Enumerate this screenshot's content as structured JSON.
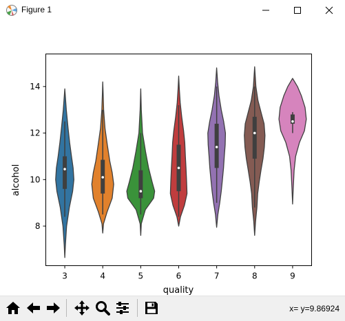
{
  "window": {
    "title": "Figure 1"
  },
  "toolbar": {
    "buttons": [
      {
        "name": "home-button",
        "icon": "home-icon"
      },
      {
        "name": "back-button",
        "icon": "arrow-left-icon"
      },
      {
        "name": "forward-button",
        "icon": "arrow-right-icon"
      },
      {
        "name": "pan-button",
        "icon": "move-icon"
      },
      {
        "name": "zoom-button",
        "icon": "magnifier-icon"
      },
      {
        "name": "subplots-button",
        "icon": "sliders-icon"
      },
      {
        "name": "save-button",
        "icon": "floppy-disk-icon"
      }
    ],
    "coords": "x= y=9.86924"
  },
  "chart_data": {
    "type": "violin",
    "xlabel": "quality",
    "ylabel": "alcohol",
    "categories": [
      "3",
      "4",
      "5",
      "6",
      "7",
      "8",
      "9"
    ],
    "ylim": [
      6.3,
      15.4
    ],
    "yticks": [
      8,
      10,
      12,
      14
    ],
    "grid": false,
    "series": [
      {
        "category": "3",
        "color": "#3274a1",
        "box": {
          "q1": 9.6,
          "median": 10.45,
          "q3": 11.0,
          "whisker_low": 8.4,
          "whisker_high": 12.5
        },
        "profile": [
          [
            6.65,
            0.0
          ],
          [
            7.2,
            0.04
          ],
          [
            8.0,
            0.12
          ],
          [
            8.8,
            0.3
          ],
          [
            9.5,
            0.52
          ],
          [
            10.0,
            0.6
          ],
          [
            10.5,
            0.55
          ],
          [
            11.0,
            0.44
          ],
          [
            11.6,
            0.32
          ],
          [
            12.2,
            0.22
          ],
          [
            13.0,
            0.1
          ],
          [
            13.9,
            0.0
          ]
        ]
      },
      {
        "category": "4",
        "color": "#e1812c",
        "box": {
          "q1": 9.4,
          "median": 10.1,
          "q3": 10.85,
          "whisker_low": 8.5,
          "whisker_high": 13.0
        },
        "profile": [
          [
            7.7,
            0.0
          ],
          [
            8.1,
            0.05
          ],
          [
            8.6,
            0.28
          ],
          [
            9.2,
            0.62
          ],
          [
            9.8,
            0.72
          ],
          [
            10.3,
            0.62
          ],
          [
            10.8,
            0.46
          ],
          [
            11.5,
            0.3
          ],
          [
            12.2,
            0.15
          ],
          [
            13.0,
            0.06
          ],
          [
            13.8,
            0.02
          ],
          [
            14.2,
            0.0
          ]
        ]
      },
      {
        "category": "5",
        "color": "#3a923a",
        "box": {
          "q1": 9.2,
          "median": 9.5,
          "q3": 10.4,
          "whisker_low": 8.5,
          "whisker_high": 12.0
        },
        "profile": [
          [
            7.6,
            0.0
          ],
          [
            8.1,
            0.04
          ],
          [
            8.7,
            0.3
          ],
          [
            9.2,
            0.85
          ],
          [
            9.5,
            0.92
          ],
          [
            9.9,
            0.75
          ],
          [
            10.5,
            0.52
          ],
          [
            11.2,
            0.32
          ],
          [
            12.0,
            0.12
          ],
          [
            13.0,
            0.04
          ],
          [
            13.9,
            0.0
          ]
        ]
      },
      {
        "category": "6",
        "color": "#c03d3e",
        "box": {
          "q1": 9.5,
          "median": 10.5,
          "q3": 11.5,
          "whisker_low": 8.4,
          "whisker_high": 13.2
        },
        "profile": [
          [
            8.0,
            0.0
          ],
          [
            8.4,
            0.12
          ],
          [
            8.9,
            0.38
          ],
          [
            9.4,
            0.55
          ],
          [
            9.9,
            0.52
          ],
          [
            10.5,
            0.48
          ],
          [
            11.0,
            0.44
          ],
          [
            11.6,
            0.4
          ],
          [
            12.1,
            0.32
          ],
          [
            12.7,
            0.2
          ],
          [
            13.3,
            0.1
          ],
          [
            13.9,
            0.04
          ],
          [
            14.45,
            0.0
          ]
        ]
      },
      {
        "category": "7",
        "color": "#9372b2",
        "box": {
          "q1": 10.5,
          "median": 11.4,
          "q3": 12.4,
          "whisker_low": 9.0,
          "whisker_high": 14.0
        },
        "profile": [
          [
            7.95,
            0.0
          ],
          [
            8.5,
            0.08
          ],
          [
            9.0,
            0.2
          ],
          [
            9.5,
            0.3
          ],
          [
            10.0,
            0.38
          ],
          [
            10.5,
            0.45
          ],
          [
            11.0,
            0.5
          ],
          [
            11.5,
            0.56
          ],
          [
            12.0,
            0.58
          ],
          [
            12.5,
            0.46
          ],
          [
            13.0,
            0.3
          ],
          [
            13.6,
            0.15
          ],
          [
            14.2,
            0.06
          ],
          [
            14.8,
            0.0
          ]
        ]
      },
      {
        "category": "8",
        "color": "#845b53",
        "box": {
          "q1": 10.9,
          "median": 12.0,
          "q3": 12.7,
          "whisker_low": 8.8,
          "whisker_high": 14.0
        },
        "profile": [
          [
            7.6,
            0.0
          ],
          [
            8.2,
            0.06
          ],
          [
            8.8,
            0.15
          ],
          [
            9.4,
            0.2
          ],
          [
            9.9,
            0.3
          ],
          [
            10.4,
            0.42
          ],
          [
            10.9,
            0.55
          ],
          [
            11.4,
            0.64
          ],
          [
            11.9,
            0.68
          ],
          [
            12.4,
            0.62
          ],
          [
            12.9,
            0.42
          ],
          [
            13.4,
            0.22
          ],
          [
            14.0,
            0.08
          ],
          [
            14.85,
            0.0
          ]
        ]
      },
      {
        "category": "9",
        "color": "#d684bd",
        "box": {
          "q1": 12.4,
          "median": 12.5,
          "q3": 12.8,
          "whisker_low": 12.0,
          "whisker_high": 12.9
        },
        "profile": [
          [
            8.95,
            0.0
          ],
          [
            9.6,
            0.04
          ],
          [
            10.4,
            0.1
          ],
          [
            11.0,
            0.2
          ],
          [
            11.6,
            0.45
          ],
          [
            12.1,
            0.78
          ],
          [
            12.6,
            0.9
          ],
          [
            13.1,
            0.82
          ],
          [
            13.6,
            0.58
          ],
          [
            14.0,
            0.32
          ],
          [
            14.35,
            0.0
          ]
        ]
      }
    ]
  }
}
